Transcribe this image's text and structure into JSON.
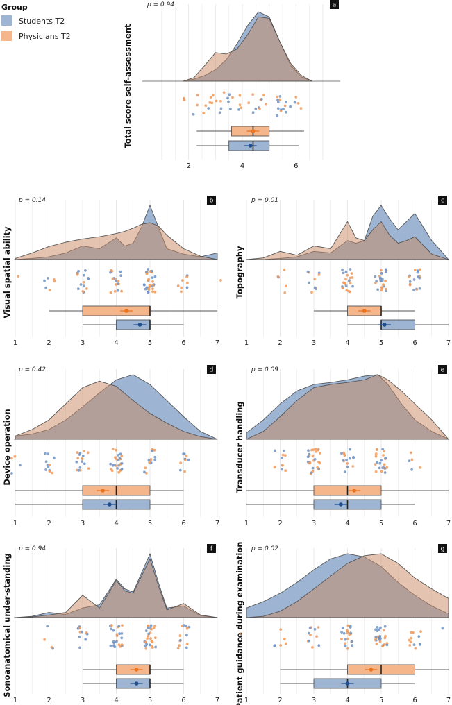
{
  "legend": {
    "title": "Group",
    "items": [
      {
        "label": "Students T2",
        "color": "#9db4d3",
        "dark": "#1f4e8f"
      },
      {
        "label": "Physicians T2",
        "color": "#f6b68c",
        "dark": "#e8741f"
      }
    ]
  },
  "colors": {
    "overlap": "#a99993",
    "outline": "#555555",
    "grid": "#e6e6e6"
  },
  "chart_data": [
    {
      "type": "raincloud",
      "panel": "a",
      "ylabel": "Total score self-assessment",
      "p": "p = 0.94",
      "xlim": [
        1,
        7
      ],
      "ticks": [
        2,
        4,
        6
      ],
      "density": {
        "x": [
          1.8,
          2.2,
          2.6,
          3.0,
          3.4,
          3.8,
          4.2,
          4.6,
          5.0,
          5.4,
          5.8,
          6.2,
          6.6
        ],
        "students": [
          0.0,
          0.03,
          0.08,
          0.16,
          0.3,
          0.52,
          0.78,
          0.97,
          0.9,
          0.55,
          0.22,
          0.06,
          0.0
        ],
        "physicians": [
          0.0,
          0.05,
          0.22,
          0.4,
          0.38,
          0.45,
          0.65,
          0.9,
          0.88,
          0.55,
          0.25,
          0.08,
          0.0
        ]
      },
      "box": {
        "students": {
          "min": 2.3,
          "q1": 3.5,
          "median": 4.4,
          "q3": 5.0,
          "max": 6.1,
          "mean": 4.3
        },
        "physicians": {
          "min": 2.3,
          "q1": 3.6,
          "median": 4.4,
          "q3": 5.0,
          "max": 6.3,
          "mean": 4.4
        }
      },
      "points": {
        "n": 55,
        "mode": "continuous",
        "center": 4.4,
        "spread": 2.2,
        "min": 1.8,
        "max": 6.2
      }
    },
    {
      "type": "raincloud",
      "panel": "b",
      "ylabel": "Visual spatial ability",
      "p": "p = 0.14",
      "xlim": [
        1,
        7
      ],
      "ticks": [
        1,
        2,
        3,
        4,
        5,
        6,
        7
      ],
      "density": {
        "x": [
          1.0,
          1.5,
          2.0,
          2.5,
          3.0,
          3.5,
          4.0,
          4.25,
          4.5,
          4.75,
          5.0,
          5.25,
          5.5,
          6.0,
          6.5,
          7.0
        ],
        "students": [
          0.0,
          0.02,
          0.05,
          0.12,
          0.25,
          0.2,
          0.4,
          0.25,
          0.3,
          0.6,
          1.0,
          0.6,
          0.2,
          0.1,
          0.05,
          0.12
        ],
        "physicians": [
          0.02,
          0.12,
          0.24,
          0.32,
          0.38,
          0.42,
          0.48,
          0.52,
          0.58,
          0.65,
          0.68,
          0.62,
          0.45,
          0.2,
          0.06,
          0.0
        ]
      },
      "box": {
        "students": {
          "min": 3.0,
          "q1": 4.0,
          "median": 5.0,
          "q3": 5.0,
          "max": 6.0,
          "mean": 4.7
        },
        "physicians": {
          "min": 2.0,
          "q1": 3.0,
          "median": 5.0,
          "q3": 5.0,
          "max": 7.0,
          "mean": 4.3
        }
      },
      "points": {
        "n": 80,
        "mode": "discrete",
        "weights": [
          1,
          4,
          16,
          16,
          34,
          8,
          1
        ]
      }
    },
    {
      "type": "raincloud",
      "panel": "c",
      "ylabel": "Topography",
      "p": "p = 0.01",
      "xlim": [
        1,
        7
      ],
      "ticks": [
        1,
        2,
        3,
        4,
        5,
        6,
        7
      ],
      "density": {
        "x": [
          1.0,
          1.5,
          2.0,
          2.5,
          3.0,
          3.5,
          4.0,
          4.25,
          4.5,
          4.75,
          5.0,
          5.25,
          5.5,
          5.75,
          6.0,
          6.5,
          7.0
        ],
        "students": [
          0.0,
          0.0,
          0.02,
          0.05,
          0.15,
          0.12,
          0.35,
          0.3,
          0.35,
          0.8,
          1.0,
          0.75,
          0.55,
          0.7,
          0.85,
          0.35,
          0.0
        ],
        "physicians": [
          0.0,
          0.03,
          0.15,
          0.08,
          0.25,
          0.2,
          0.7,
          0.4,
          0.35,
          0.55,
          0.7,
          0.45,
          0.3,
          0.35,
          0.42,
          0.1,
          0.0
        ]
      },
      "box": {
        "students": {
          "min": 4.0,
          "q1": 5.0,
          "median": 5.0,
          "q3": 6.0,
          "max": 7.0,
          "mean": 5.1
        },
        "physicians": {
          "min": 3.0,
          "q1": 4.0,
          "median": 5.0,
          "q3": 5.0,
          "max": 6.0,
          "mean": 4.5
        }
      },
      "points": {
        "n": 80,
        "mode": "discrete",
        "weights": [
          0,
          3,
          8,
          22,
          28,
          19,
          0
        ]
      }
    },
    {
      "type": "raincloud",
      "panel": "d",
      "ylabel": "Device operation",
      "p": "p = 0.42",
      "xlim": [
        1,
        7
      ],
      "ticks": [
        1,
        2,
        3,
        4,
        5,
        6,
        7
      ],
      "density": {
        "x": [
          1.0,
          1.5,
          2.0,
          2.5,
          3.0,
          3.5,
          4.0,
          4.5,
          5.0,
          5.5,
          6.0,
          6.5,
          7.0
        ],
        "students": [
          0.05,
          0.08,
          0.15,
          0.3,
          0.5,
          0.72,
          0.92,
          1.0,
          0.85,
          0.6,
          0.35,
          0.12,
          0.0
        ],
        "physicians": [
          0.05,
          0.15,
          0.3,
          0.55,
          0.8,
          0.9,
          0.82,
          0.6,
          0.4,
          0.25,
          0.12,
          0.04,
          0.0
        ]
      },
      "box": {
        "students": {
          "min": 1.0,
          "q1": 3.0,
          "median": 4.0,
          "q3": 5.0,
          "max": 6.0,
          "mean": 3.8
        },
        "physicians": {
          "min": 1.0,
          "q1": 3.0,
          "median": 4.0,
          "q3": 5.0,
          "max": 6.0,
          "mean": 3.6
        }
      },
      "points": {
        "n": 80,
        "mode": "discrete",
        "weights": [
          6,
          10,
          18,
          20,
          16,
          10,
          0
        ]
      }
    },
    {
      "type": "raincloud",
      "panel": "e",
      "ylabel": "Transducer handling",
      "p": "p = 0.09",
      "xlim": [
        1,
        7
      ],
      "ticks": [
        1,
        2,
        3,
        4,
        5,
        6,
        7
      ],
      "density": {
        "x": [
          1.0,
          1.5,
          2.0,
          2.5,
          3.0,
          3.5,
          4.0,
          4.5,
          4.9,
          5.2,
          5.6,
          6.0,
          6.5,
          7.0
        ],
        "students": [
          0.1,
          0.3,
          0.55,
          0.75,
          0.85,
          0.88,
          0.92,
          0.98,
          1.0,
          0.85,
          0.55,
          0.3,
          0.12,
          0.0
        ],
        "physicians": [
          0.0,
          0.12,
          0.35,
          0.6,
          0.8,
          0.85,
          0.88,
          0.92,
          1.0,
          0.92,
          0.75,
          0.55,
          0.3,
          0.0
        ]
      },
      "box": {
        "students": {
          "min": 1.0,
          "q1": 3.0,
          "median": 4.0,
          "q3": 5.0,
          "max": 6.0,
          "mean": 3.8
        },
        "physicians": {
          "min": 1.0,
          "q1": 3.0,
          "median": 4.0,
          "q3": 5.0,
          "max": 7.0,
          "mean": 4.2
        }
      },
      "points": {
        "n": 80,
        "mode": "discrete",
        "weights": [
          0,
          8,
          22,
          20,
          24,
          5,
          0
        ]
      }
    },
    {
      "type": "raincloud",
      "panel": "f",
      "ylabel": "Sonoanatomical under-standing",
      "p": "p = 0.94",
      "xlim": [
        1,
        7
      ],
      "ticks": [
        1,
        2,
        3,
        4,
        5,
        6,
        7
      ],
      "density": {
        "x": [
          1.0,
          1.5,
          2.0,
          2.5,
          3.0,
          3.5,
          4.0,
          4.25,
          4.5,
          4.75,
          5.0,
          5.25,
          5.5,
          6.0,
          6.5,
          7.0
        ],
        "students": [
          0.0,
          0.02,
          0.08,
          0.05,
          0.15,
          0.2,
          0.6,
          0.45,
          0.4,
          0.7,
          1.0,
          0.55,
          0.15,
          0.18,
          0.03,
          0.0
        ],
        "physicians": [
          0.0,
          0.01,
          0.04,
          0.08,
          0.35,
          0.15,
          0.58,
          0.42,
          0.38,
          0.65,
          0.92,
          0.5,
          0.12,
          0.22,
          0.04,
          0.0
        ]
      },
      "box": {
        "students": {
          "min": 3.0,
          "q1": 4.0,
          "median": 5.0,
          "q3": 5.0,
          "max": 6.0,
          "mean": 4.6
        },
        "physicians": {
          "min": 3.0,
          "q1": 4.0,
          "median": 5.0,
          "q3": 5.0,
          "max": 6.0,
          "mean": 4.6
        }
      },
      "points": {
        "n": 80,
        "mode": "discrete",
        "weights": [
          0,
          3,
          14,
          18,
          32,
          11,
          2
        ]
      }
    },
    {
      "type": "raincloud",
      "panel": "g",
      "ylabel": "Patient guidance during examination",
      "p": "p = 0.02",
      "xlim": [
        1,
        7
      ],
      "ticks": [
        1,
        2,
        3,
        4,
        5,
        6,
        7
      ],
      "density": {
        "x": [
          1.0,
          1.5,
          2.0,
          2.5,
          3.0,
          3.5,
          4.0,
          4.5,
          5.0,
          5.5,
          6.0,
          6.5,
          7.0
        ],
        "students": [
          0.15,
          0.25,
          0.38,
          0.55,
          0.75,
          0.92,
          1.0,
          0.95,
          0.8,
          0.55,
          0.35,
          0.18,
          0.06
        ],
        "physicians": [
          0.0,
          0.02,
          0.1,
          0.25,
          0.45,
          0.65,
          0.85,
          0.97,
          1.0,
          0.85,
          0.62,
          0.45,
          0.3
        ]
      },
      "box": {
        "students": {
          "min": 2.0,
          "q1": 3.0,
          "median": 4.0,
          "q3": 5.0,
          "max": 6.0,
          "mean": 4.0
        },
        "physicians": {
          "min": 2.0,
          "q1": 4.0,
          "median": 5.0,
          "q3": 6.0,
          "max": 7.0,
          "mean": 4.7
        }
      },
      "points": {
        "n": 80,
        "mode": "discrete",
        "weights": [
          2,
          6,
          14,
          20,
          22,
          12,
          4
        ]
      }
    }
  ]
}
